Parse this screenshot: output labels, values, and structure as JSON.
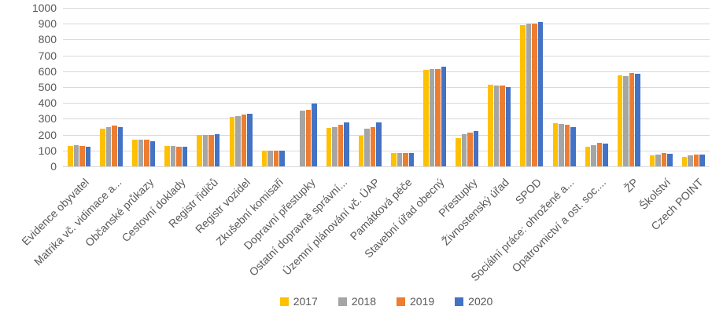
{
  "chart_data": {
    "type": "bar",
    "title": "",
    "xlabel": "",
    "ylabel": "",
    "ylim": [
      0,
      1000
    ],
    "ytick_step": 100,
    "yticks": [
      0,
      100,
      200,
      300,
      400,
      500,
      600,
      700,
      800,
      900,
      1000
    ],
    "grid": true,
    "legend_position": "bottom",
    "colors": {
      "gridline": "#D9D9D9",
      "axis_text": "#595959",
      "background": "#FFFFFF"
    },
    "categories": [
      "Evidence obyvatel",
      "Matrika vč. vidimace a...",
      "Občanské průkazy",
      "Cestovní doklady",
      "Registr řidičů",
      "Registr vozidel",
      "Zkušební komisaři",
      "Dopravní přestupky",
      "Ostatní dopravně správní...",
      "Územní plánování vč. ÚAP",
      "Památková péče",
      "Stavební úřad obecný",
      "Přestupky",
      "Živnostenský úřad",
      "SPOD",
      "Sociální práce: ohrožené a...",
      "Opatrovnictví a ost. soc....",
      "ŽP",
      "Školství",
      "Czech POINT"
    ],
    "series": [
      {
        "name": "2017",
        "color": "#FFC000",
        "values": [
          130,
          240,
          166,
          130,
          197,
          314,
          98,
          0,
          243,
          192,
          84,
          607,
          180,
          515,
          890,
          272,
          123,
          572,
          70,
          60
        ]
      },
      {
        "name": "2018",
        "color": "#A5A5A5",
        "values": [
          132,
          246,
          170,
          130,
          200,
          316,
          98,
          354,
          248,
          240,
          83,
          615,
          203,
          510,
          900,
          266,
          133,
          567,
          74,
          68
        ]
      },
      {
        "name": "2019",
        "color": "#ED7D31",
        "values": [
          130,
          257,
          166,
          125,
          200,
          328,
          98,
          358,
          260,
          248,
          86,
          612,
          212,
          510,
          900,
          261,
          148,
          590,
          82,
          72
        ]
      },
      {
        "name": "2020",
        "color": "#4472C4",
        "values": [
          124,
          250,
          157,
          124,
          202,
          332,
          98,
          394,
          276,
          277,
          84,
          630,
          222,
          500,
          912,
          246,
          144,
          586,
          78,
          72
        ]
      }
    ]
  }
}
